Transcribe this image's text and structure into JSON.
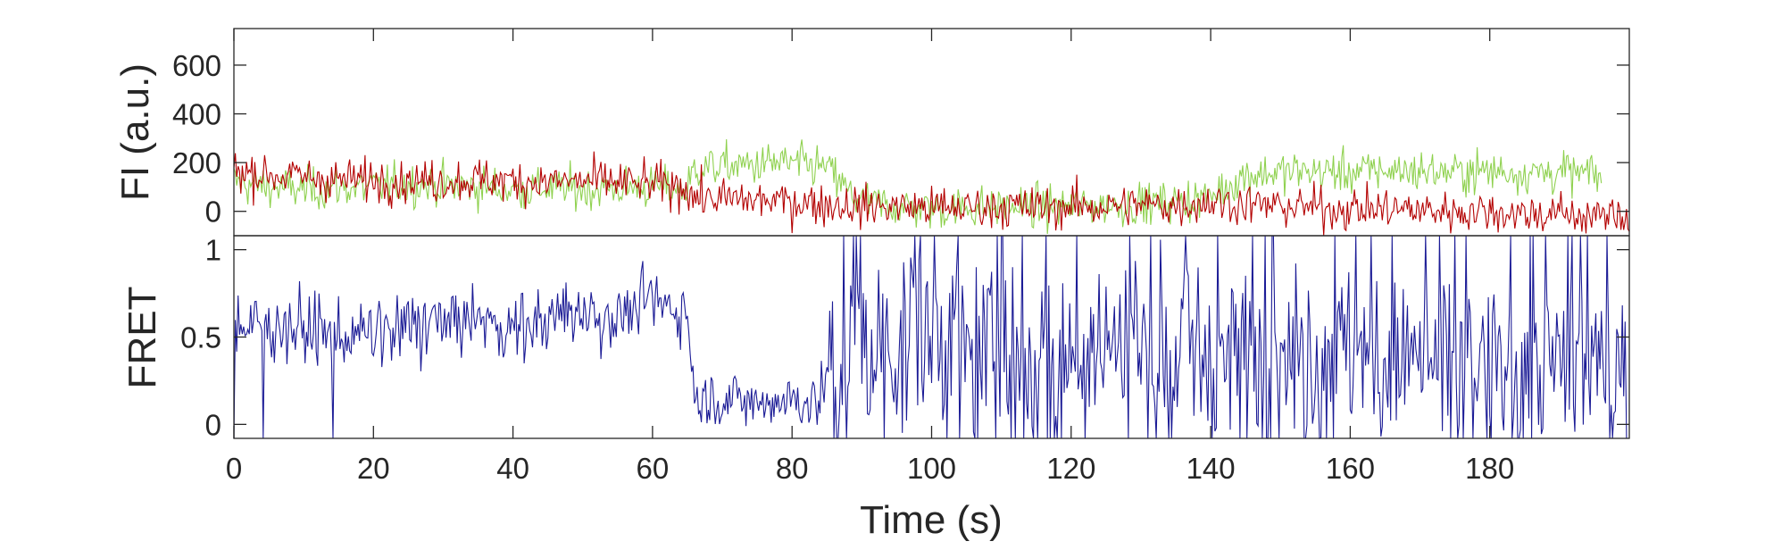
{
  "chart_data": [
    {
      "type": "line",
      "ylabel": "FI (a.u.)",
      "xlim": [
        0,
        200
      ],
      "ylim": [
        -100,
        750
      ],
      "yticks": [
        0,
        200,
        400,
        600
      ],
      "ytick_labels": [
        "0",
        "200",
        "400",
        "600"
      ],
      "grid": false,
      "series": [
        {
          "color": "#8fd14f",
          "x": [
            0,
            5,
            10,
            15,
            20,
            25,
            30,
            35,
            40,
            45,
            50,
            55,
            60,
            65,
            66,
            70,
            75,
            78,
            80,
            85,
            88,
            90,
            95,
            100,
            105,
            110,
            115,
            120,
            125,
            130,
            135,
            140,
            145,
            150,
            155,
            160,
            165,
            170,
            175,
            180,
            185,
            190,
            195,
            196
          ],
          "y": [
            120,
            100,
            90,
            95,
            100,
            110,
            105,
            100,
            90,
            95,
            90,
            95,
            100,
            90,
            175,
            185,
            190,
            200,
            195,
            180,
            80,
            40,
            20,
            10,
            15,
            20,
            15,
            20,
            25,
            30,
            40,
            60,
            150,
            160,
            165,
            160,
            170,
            165,
            160,
            165,
            160,
            160,
            150,
            140
          ]
        },
        {
          "color": "#b30000",
          "x": [
            0,
            5,
            10,
            15,
            20,
            25,
            30,
            35,
            40,
            45,
            50,
            55,
            60,
            65,
            66,
            70,
            75,
            80,
            85,
            90,
            95,
            100,
            105,
            110,
            115,
            120,
            125,
            130,
            135,
            140,
            145,
            150,
            155,
            160,
            165,
            170,
            175,
            180,
            185,
            190,
            195,
            200
          ],
          "y": [
            170,
            150,
            140,
            130,
            130,
            125,
            125,
            130,
            125,
            120,
            125,
            120,
            110,
            100,
            60,
            50,
            45,
            40,
            30,
            20,
            20,
            15,
            15,
            20,
            15,
            20,
            20,
            25,
            25,
            40,
            30,
            20,
            15,
            10,
            10,
            5,
            0,
            0,
            -10,
            -10,
            -20,
            -20
          ]
        }
      ]
    },
    {
      "type": "line",
      "xlabel": "Time (s)",
      "ylabel": "FRET",
      "xlim": [
        0,
        200
      ],
      "ylim": [
        -0.08,
        1.08
      ],
      "xticks": [
        0,
        20,
        40,
        60,
        80,
        100,
        120,
        140,
        160,
        180
      ],
      "xtick_labels": [
        "0",
        "20",
        "40",
        "60",
        "80",
        "100",
        "120",
        "140",
        "160",
        "180"
      ],
      "yticks": [
        0,
        0.5,
        1
      ],
      "ytick_labels": [
        "0",
        "0.5",
        "1"
      ],
      "grid": false,
      "series": [
        {
          "color": "#1c1c96",
          "x": [
            0,
            5,
            10,
            15,
            20,
            25,
            30,
            35,
            40,
            45,
            50,
            55,
            60,
            65,
            66,
            70,
            75,
            80,
            84,
            85,
            90,
            95,
            100,
            110,
            120,
            130,
            140,
            150,
            160,
            170,
            180,
            190,
            200
          ],
          "y": [
            0.55,
            0.58,
            0.55,
            0.5,
            0.52,
            0.55,
            0.58,
            0.6,
            0.55,
            0.6,
            0.65,
            0.62,
            0.7,
            0.65,
            0.15,
            0.15,
            0.12,
            0.15,
            0.12,
            0.3,
            0.4,
            0.45,
            0.5,
            0.4,
            0.45,
            0.5,
            0.45,
            0.4,
            0.4,
            0.35,
            0.3,
            0.3,
            0.3
          ]
        }
      ]
    }
  ]
}
